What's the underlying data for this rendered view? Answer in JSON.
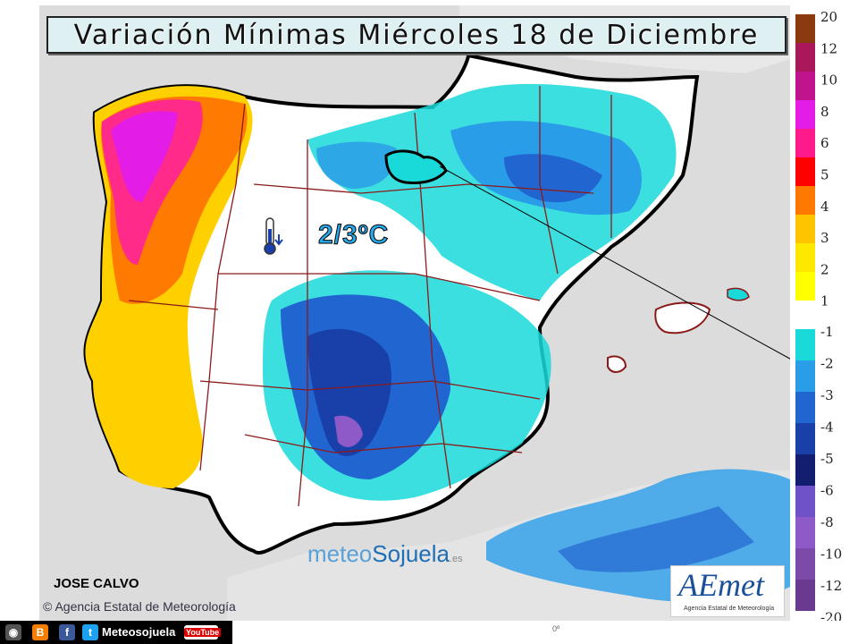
{
  "title": "Variación Mínimas Miércoles 18 de Diciembre",
  "annotation": "2/3ºC",
  "author": "JOSE CALVO",
  "copyright": "Agencia Estatal de Meteorología",
  "brand": {
    "part1": "meteo",
    "part2": "Sojuela",
    "suffix": ".es"
  },
  "aemet": {
    "logo": "AEmet",
    "subtitle": "Agencia Estatal de Meteorología"
  },
  "social": {
    "label": "Meteosojuela",
    "youtube": "YouTube"
  },
  "coord_label": "0º",
  "legend": {
    "labels": [
      "20",
      "12",
      "10",
      "8",
      "6",
      "5",
      "4",
      "3",
      "2",
      "1",
      "-1",
      "-2",
      "-3",
      "-4",
      "-5",
      "-6",
      "-8",
      "-10",
      "-12",
      "-20"
    ],
    "positive_colors": [
      "#8b3a10",
      "#a8185a",
      "#c0148c",
      "#e31ce6",
      "#ff1a8c",
      "#ff0000",
      "#ff7800",
      "#ffc400",
      "#ffe800",
      "#ffff00"
    ],
    "negative_colors": [
      "#1ad9d9",
      "#2a9de8",
      "#2166d0",
      "#1840a8",
      "#141e70",
      "#6f51c8",
      "#8e5ac8",
      "#7c4aa8",
      "#6a3a90"
    ]
  }
}
